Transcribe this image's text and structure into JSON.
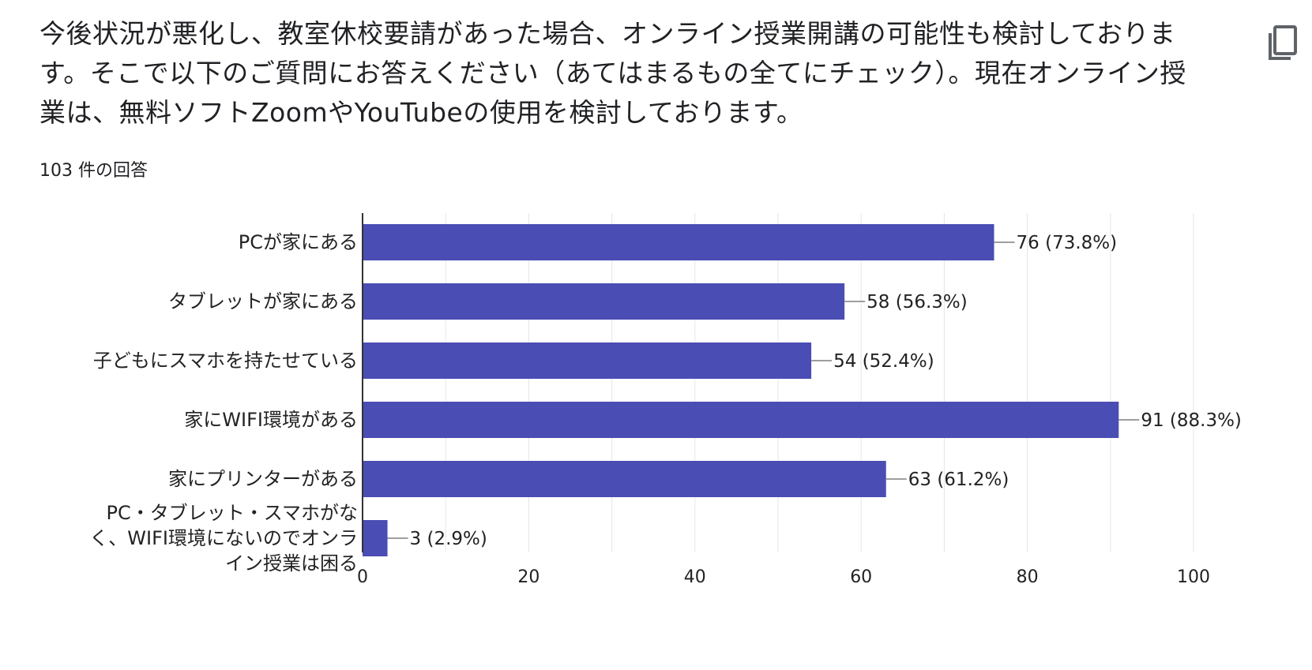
{
  "question": {
    "text": "今後状況が悪化し、教室休校要請があった場合、オンライン授業開講の可能性も検討しております。そこで以下のご質問にお答えください（あてはまるもの全てにチェック）。現在オンライン授業は、無料ソフトZoomやYouTubeの使用を検討しております。",
    "response_count": "103 件の回答"
  },
  "actions": {
    "copy_icon": "copy-icon"
  },
  "colors": {
    "bar": "#4a4db3",
    "axis": "#333333",
    "grid": "#e6e6e6",
    "leader": "#9e9e9e"
  },
  "chart_data": {
    "type": "bar",
    "orientation": "horizontal",
    "categories": [
      [
        "PCが家にある"
      ],
      [
        "タブレットが家にある"
      ],
      [
        "子どもにスマホを持たせている"
      ],
      [
        "家にWIFI環境がある"
      ],
      [
        "家にプリンターがある"
      ],
      [
        "PC・タブレット・スマホがな",
        "く、WIFI環境にないのでオンラ",
        "イン授業は困る"
      ]
    ],
    "values": [
      76,
      58,
      54,
      91,
      63,
      3
    ],
    "data_labels": [
      "76 (73.8%)",
      "58 (56.3%)",
      "54 (52.4%)",
      "91 (88.3%)",
      "63 (61.2%)",
      "3 (2.9%)"
    ],
    "x_ticks": [
      "0",
      "20",
      "40",
      "60",
      "80",
      "100"
    ],
    "xlim": [
      0,
      100
    ],
    "grid": true,
    "legend": "none"
  }
}
